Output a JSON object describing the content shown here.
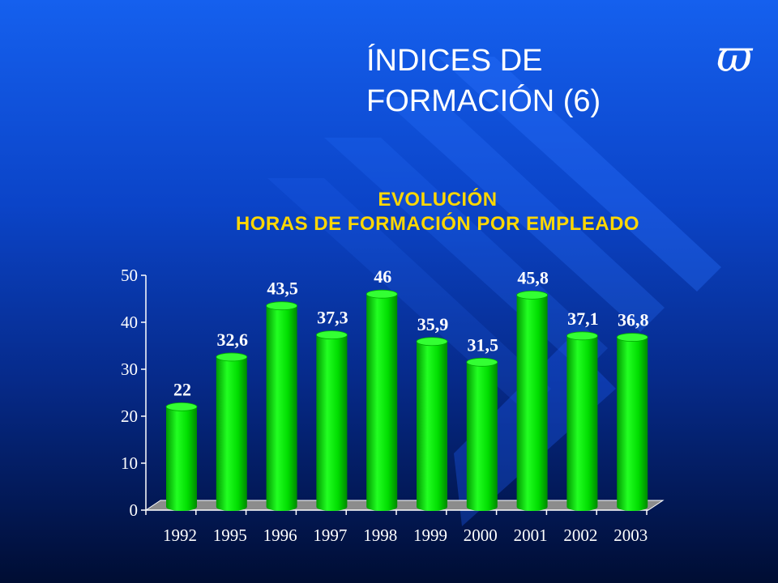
{
  "slide": {
    "title_lines": [
      "ÍNDICES DE",
      "FORMACIÓN (6)"
    ],
    "logo_glyph": "ϖ",
    "subtitle_lines": [
      "EVOLUCIÓN",
      "HORAS DE FORMACIÓN POR EMPLEADO"
    ],
    "colors": {
      "background": "#0b44c8",
      "title": "#ffffff",
      "subtitle": "#ffd700",
      "bar": "#00e000",
      "floor": "#8c8c8c"
    }
  },
  "chart_data": {
    "type": "bar",
    "title": "EVOLUCIÓN HORAS DE FORMACIÓN POR EMPLEADO",
    "categories": [
      "1992",
      "1995",
      "1996",
      "1997",
      "1998",
      "1999",
      "2000",
      "2001",
      "2002",
      "2003"
    ],
    "values": [
      22,
      32.6,
      43.5,
      37.3,
      46,
      35.9,
      31.5,
      45.8,
      37.1,
      36.8
    ],
    "value_labels": [
      "22",
      "32,6",
      "43,5",
      "37,3",
      "46",
      "35,9",
      "31,5",
      "45,8",
      "37,1",
      "36,8"
    ],
    "ylim": [
      0,
      50
    ],
    "yticks": [
      0,
      10,
      20,
      30,
      40,
      50
    ],
    "grid": false,
    "legend": false,
    "style": "3d-cylinder"
  }
}
